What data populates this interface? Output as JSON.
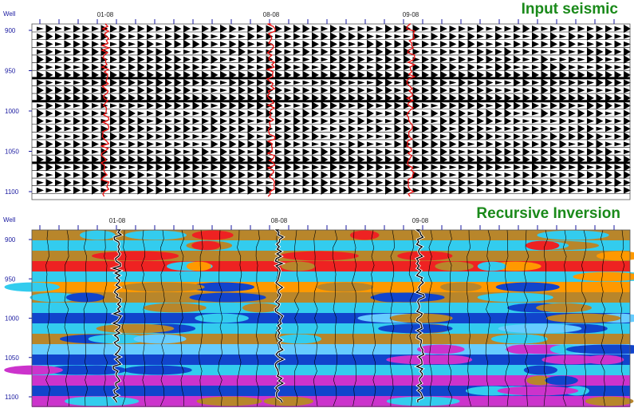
{
  "panels": [
    {
      "title": "Input seismic",
      "axis_label": "Well",
      "wells": [
        "01-08",
        "08-08",
        "09-08"
      ],
      "ticks": [
        900,
        950,
        1000,
        1050,
        1100
      ]
    },
    {
      "title": "Recursive Inversion",
      "axis_label": "Well",
      "wells": [
        "01-08",
        "08-08",
        "09-08"
      ],
      "ticks": [
        900,
        950,
        1000,
        1050,
        1100
      ]
    }
  ]
}
